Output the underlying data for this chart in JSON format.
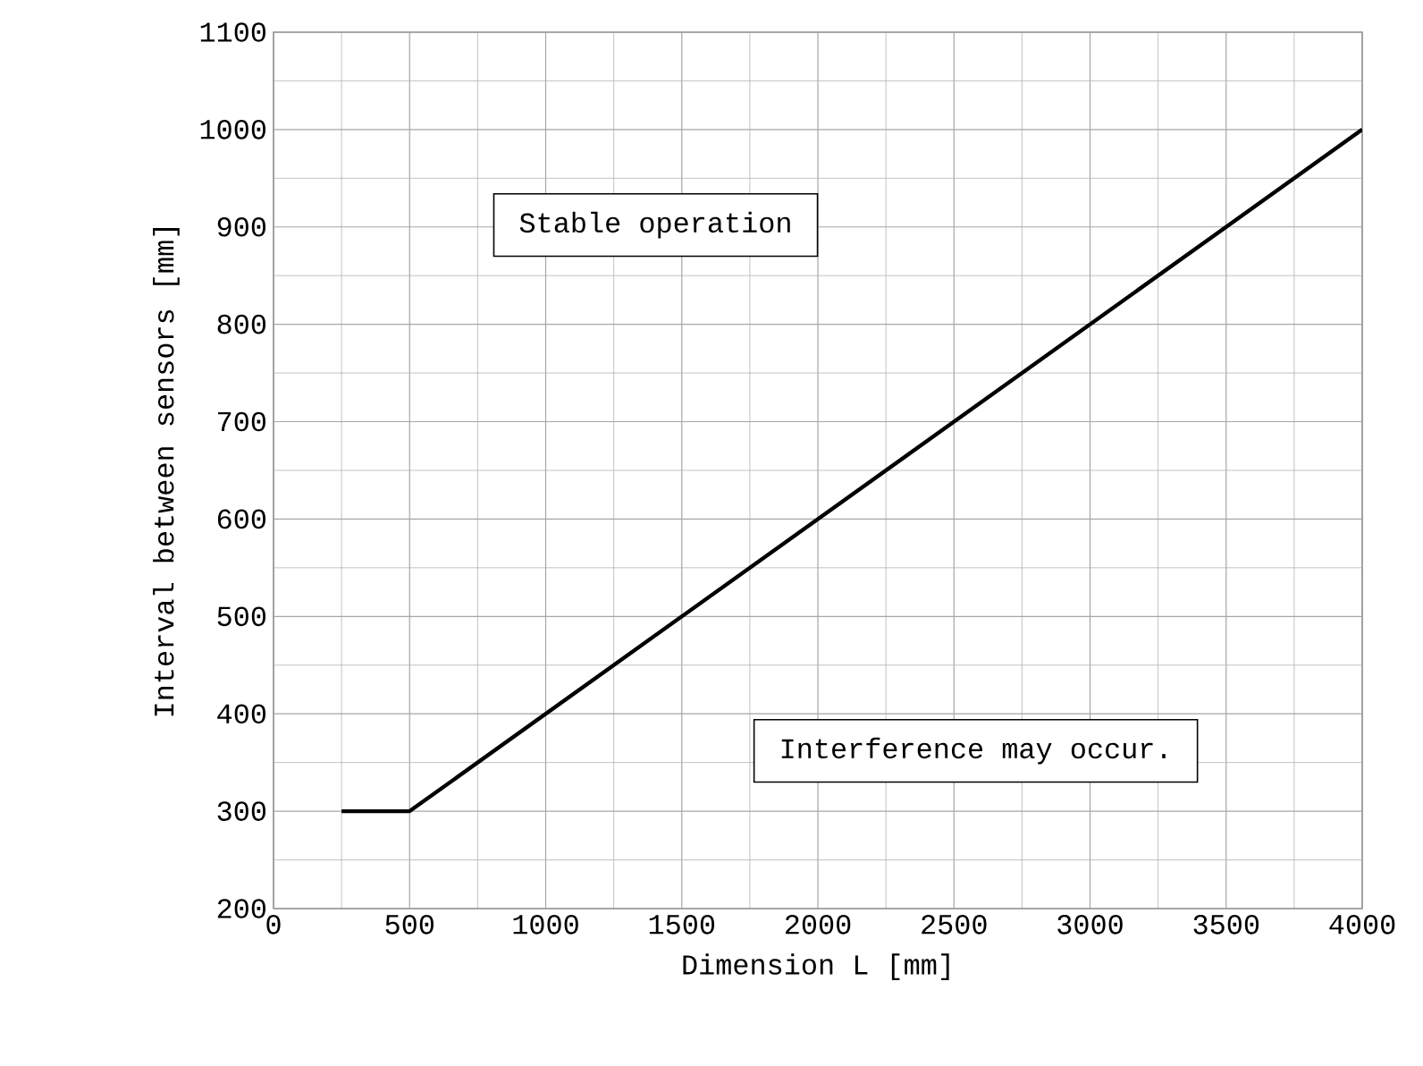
{
  "chart_data": {
    "type": "line",
    "xlabel": "Dimension L [mm]",
    "ylabel": "Interval between sensors [mm]",
    "x": [
      250,
      500,
      4000
    ],
    "series": [
      {
        "color": "#000000",
        "values": [
          300,
          300,
          1000
        ]
      }
    ],
    "xlim": [
      0,
      4000
    ],
    "xticks": [
      0,
      500,
      1000,
      1500,
      2000,
      2500,
      3000,
      3500,
      4000
    ],
    "ylim": [
      200,
      1100
    ],
    "yticks": [
      200,
      300,
      400,
      500,
      600,
      700,
      800,
      900,
      1000,
      1100
    ],
    "grid": true,
    "marker": "none",
    "line_style": "solid",
    "annotations": [
      "Stable operation",
      "Interference may occur."
    ]
  }
}
